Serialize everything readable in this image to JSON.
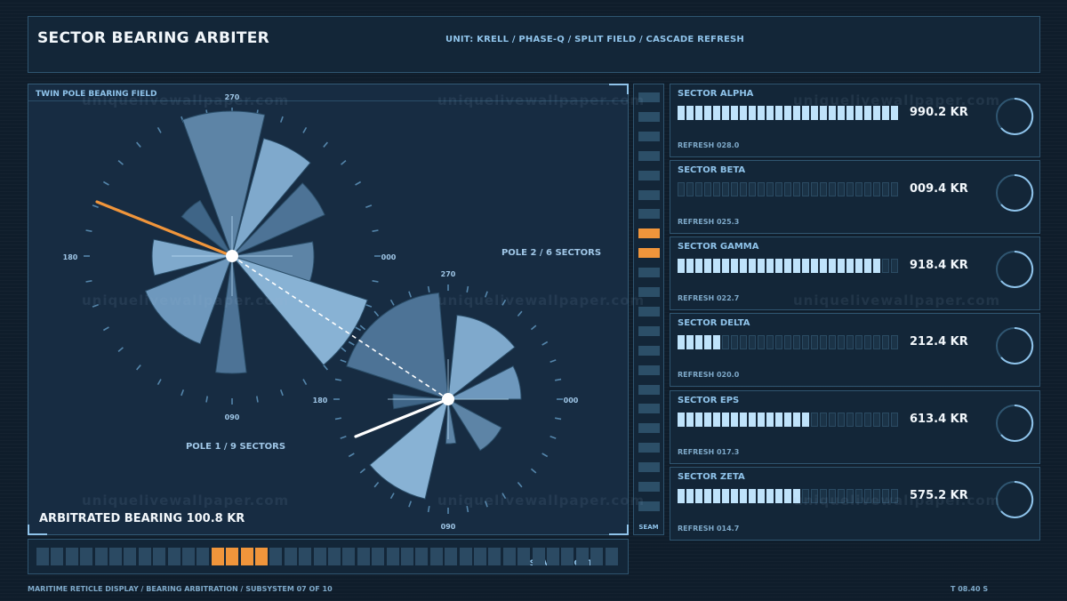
{
  "header": {
    "title": "SECTOR BEARING ARBITER",
    "subtitle": "UNIT: KRELL / PHASE-Q / SPLIT FIELD / CASCADE REFRESH"
  },
  "field": {
    "label": "TWIN POLE BEARING FIELD",
    "pole1": {
      "label": "POLE 1 / 9 SECTORS",
      "ticks": {
        "top": "270",
        "right": "000",
        "bottom": "090",
        "left": "180"
      },
      "pointer_color": "#f0953b"
    },
    "pole2": {
      "label": "POLE 2 / 6 SECTORS",
      "ticks": {
        "top": "270",
        "right": "000",
        "bottom": "090",
        "left": "180"
      },
      "pointer_color": "#ffffff"
    },
    "arbitrated": "ARBITRATED BEARING 100.8 KR"
  },
  "seam": {
    "label": "SEAM",
    "cell_count": 22,
    "active_cells": [
      7,
      8
    ]
  },
  "cascade": {
    "label": "CASCADE FRONT",
    "cell_count": 40,
    "active_cells": [
      12,
      13,
      14,
      15
    ]
  },
  "sectors": [
    {
      "name": "SECTOR ALPHA",
      "value": "990.2 KR",
      "refresh": "REFRESH 028.0",
      "fill": 1.0
    },
    {
      "name": "SECTOR BETA",
      "value": "009.4 KR",
      "refresh": "REFRESH 025.3",
      "fill": 0.0
    },
    {
      "name": "SECTOR GAMMA",
      "value": "918.4 KR",
      "refresh": "REFRESH 022.7",
      "fill": 0.92
    },
    {
      "name": "SECTOR DELTA",
      "value": "212.4 KR",
      "refresh": "REFRESH 020.0",
      "fill": 0.21
    },
    {
      "name": "SECTOR EPS",
      "value": "613.4 KR",
      "refresh": "REFRESH 017.3",
      "fill": 0.61
    },
    {
      "name": "SECTOR ZETA",
      "value": "575.2 KR",
      "refresh": "REFRESH 014.7",
      "fill": 0.58
    }
  ],
  "footer": {
    "left": "MARITIME RETICLE DISPLAY / BEARING ARBITRATION / SUBSYSTEM 07 OF 10",
    "right": "T 08.40 S"
  },
  "watermark": "uniquelivewallpaper.com",
  "colors": {
    "background": "#0f1d2b",
    "panel": "#132638",
    "accent": "#8fc3ea",
    "active": "#f0953b",
    "bar_on": "#bfe3fb"
  }
}
